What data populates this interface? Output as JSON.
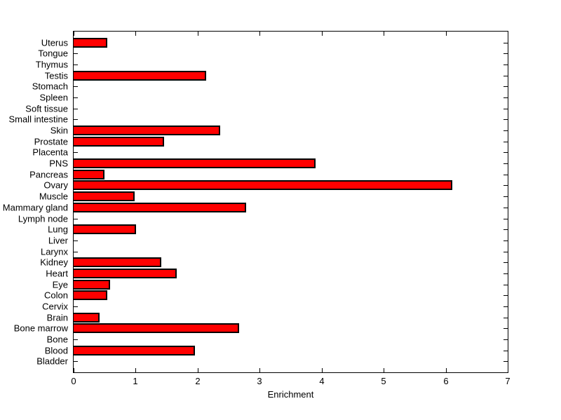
{
  "chart_data": {
    "type": "bar",
    "orientation": "horizontal",
    "title": "",
    "xlabel": "Enrichment",
    "ylabel": "",
    "xlim": [
      0,
      7
    ],
    "x_ticks": [
      0,
      1,
      2,
      3,
      4,
      5,
      6,
      7
    ],
    "grid": false,
    "legend": "none",
    "bar_color": "#ff0000",
    "bar_edge_color": "#000000",
    "axis_color": "#000000",
    "background_color": "#ffffff",
    "categories": [
      "Uterus",
      "Tongue",
      "Thymus",
      "Testis",
      "Stomach",
      "Spleen",
      "Soft tissue",
      "Small intestine",
      "Skin",
      "Prostate",
      "Placenta",
      "PNS",
      "Pancreas",
      "Ovary",
      "Muscle",
      "Mammary gland",
      "Lymph node",
      "Lung",
      "Liver",
      "Larynx",
      "Kidney",
      "Heart",
      "Eye",
      "Colon",
      "Cervix",
      "Brain",
      "Bone marrow",
      "Bone",
      "Blood",
      "Bladder"
    ],
    "values": [
      0.54,
      0,
      0,
      2.14,
      0,
      0,
      0,
      0,
      2.36,
      1.46,
      0,
      3.9,
      0.5,
      6.11,
      0.98,
      2.78,
      0,
      1.01,
      0,
      0,
      1.41,
      1.66,
      0.59,
      0.54,
      0,
      0.42,
      2.67,
      0,
      1.96,
      0
    ],
    "category_order_note": "listed top to bottom as displayed"
  }
}
